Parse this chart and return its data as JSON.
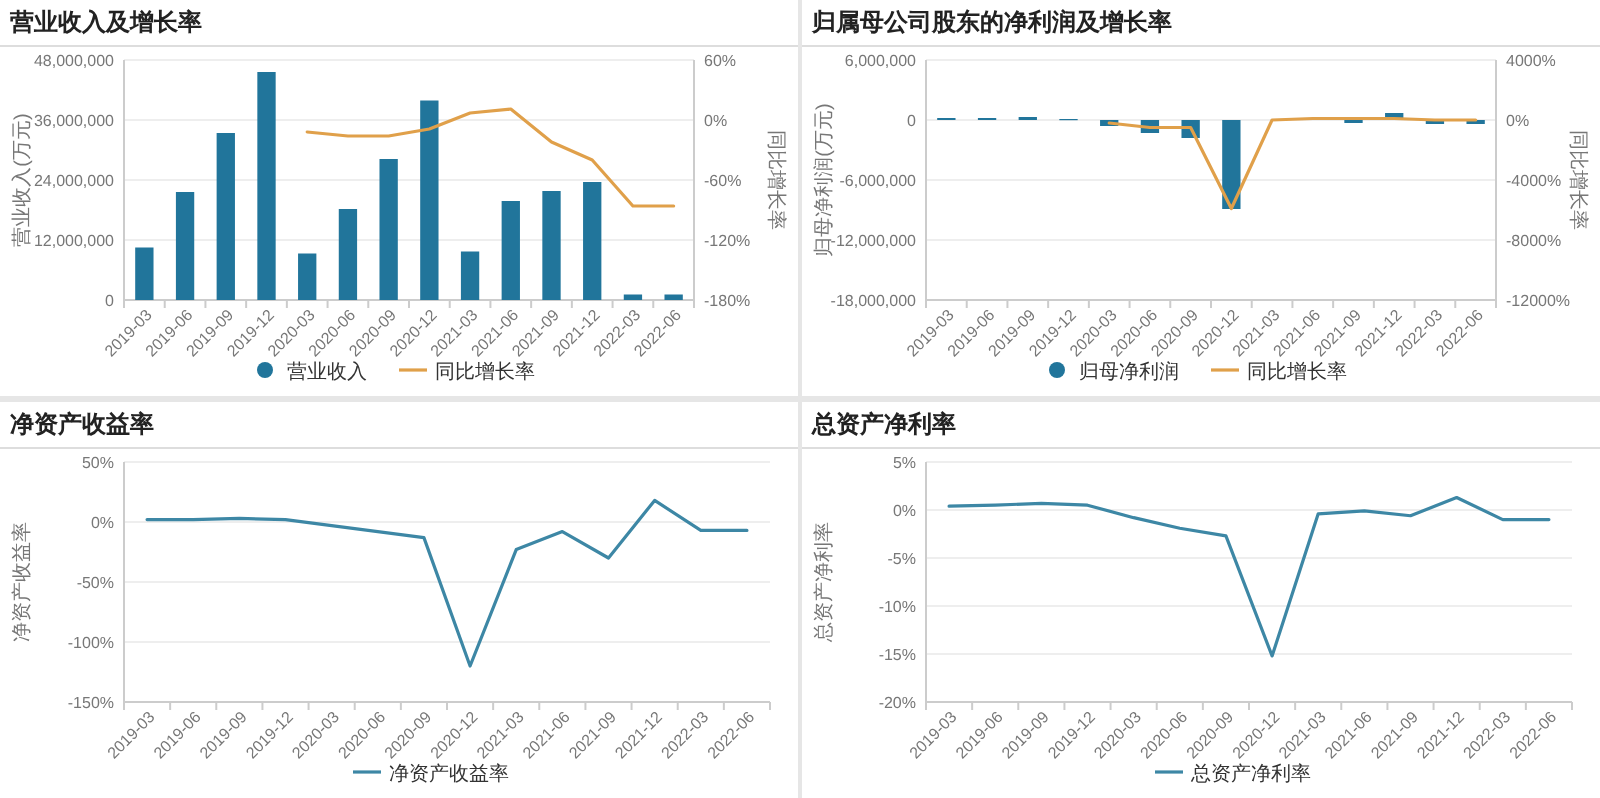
{
  "chart_data": [
    {
      "type": "bar",
      "title": "营业收入及增长率",
      "ylabel": "营业收入(万元)",
      "y2label": "同比增长率",
      "categories": [
        "2019-03",
        "2019-06",
        "2019-09",
        "2019-12",
        "2020-03",
        "2020-06",
        "2020-09",
        "2020-12",
        "2021-03",
        "2021-06",
        "2021-09",
        "2021-12",
        "2022-03",
        "2022-06"
      ],
      "series": [
        {
          "name": "营业收入",
          "color": "#21759b",
          "values": [
            10500000,
            21600000,
            33400000,
            45600000,
            9300000,
            18200000,
            28200000,
            39900000,
            9700000,
            19800000,
            21800000,
            23600000,
            1100000,
            1100000
          ]
        },
        {
          "name": "同比增长率",
          "type": "line",
          "axis": "y2",
          "color": "#e0a04a",
          "values": [
            null,
            null,
            null,
            null,
            -12,
            -16,
            -16,
            -9,
            7,
            11,
            -22,
            -40,
            -86,
            -86
          ]
        }
      ],
      "ylim": [
        0,
        48000000
      ],
      "yticks": [
        {
          "value": 0,
          "label": "0"
        },
        {
          "value": 12000000,
          "label": "12,000,000"
        },
        {
          "value": 24000000,
          "label": "24,000,000"
        },
        {
          "value": 36000000,
          "label": "36,000,000"
        },
        {
          "value": 48000000,
          "label": "48,000,000"
        }
      ],
      "y2lim": [
        -180,
        60
      ],
      "y2ticks": [
        {
          "value": -180,
          "label": "-180%"
        },
        {
          "value": -120,
          "label": "-120%"
        },
        {
          "value": -60,
          "label": "-60%"
        },
        {
          "value": 0,
          "label": "0%"
        },
        {
          "value": 60,
          "label": "60%"
        }
      ],
      "grid": "y",
      "legend": "bottom"
    },
    {
      "type": "bar",
      "title": "归属母公司股东的净利润及增长率",
      "ylabel": "归母净利润(万元)",
      "y2label": "同比增长率",
      "categories": [
        "2019-03",
        "2019-06",
        "2019-09",
        "2019-12",
        "2020-03",
        "2020-06",
        "2020-09",
        "2020-12",
        "2021-03",
        "2021-06",
        "2021-09",
        "2021-12",
        "2022-03",
        "2022-06"
      ],
      "series": [
        {
          "name": "归母净利润",
          "color": "#21759b",
          "values": [
            200000,
            200000,
            300000,
            100000,
            -600000,
            -1300000,
            -1800000,
            -8900000,
            null,
            null,
            -300000,
            700000,
            -400000,
            -400000
          ]
        },
        {
          "name": "同比增长率",
          "type": "line",
          "axis": "y2",
          "color": "#e0a04a",
          "values": [
            null,
            null,
            null,
            null,
            -200,
            -500,
            -500,
            -5900,
            0,
            100,
            100,
            100,
            0,
            0
          ]
        }
      ],
      "ylim": [
        -18000000,
        6000000
      ],
      "yticks": [
        {
          "value": -18000000,
          "label": "-18,000,000"
        },
        {
          "value": -12000000,
          "label": "-12,000,000"
        },
        {
          "value": -6000000,
          "label": "-6,000,000"
        },
        {
          "value": 0,
          "label": "0"
        },
        {
          "value": 6000000,
          "label": "6,000,000"
        }
      ],
      "y2lim": [
        -12000,
        4000
      ],
      "y2ticks": [
        {
          "value": -12000,
          "label": "-12000%"
        },
        {
          "value": -8000,
          "label": "-8000%"
        },
        {
          "value": -4000,
          "label": "-4000%"
        },
        {
          "value": 0,
          "label": "0%"
        },
        {
          "value": 4000,
          "label": "4000%"
        }
      ],
      "grid": "y",
      "legend": "bottom"
    },
    {
      "type": "line",
      "title": "净资产收益率",
      "ylabel": "净资产收益率",
      "categories": [
        "2019-03",
        "2019-06",
        "2019-09",
        "2019-12",
        "2020-03",
        "2020-06",
        "2020-09",
        "2020-12",
        "2021-03",
        "2021-06",
        "2021-09",
        "2021-12",
        "2022-03",
        "2022-06"
      ],
      "series": [
        {
          "name": "净资产收益率",
          "color": "#3d87a5",
          "values": [
            2,
            2,
            3,
            2,
            -3,
            -8,
            -13,
            -120,
            -23,
            -8,
            -30,
            18,
            -7,
            -7
          ]
        }
      ],
      "ylim": [
        -150,
        50
      ],
      "yticks": [
        {
          "value": -150,
          "label": "-150%"
        },
        {
          "value": -100,
          "label": "-100%"
        },
        {
          "value": -50,
          "label": "-50%"
        },
        {
          "value": 0,
          "label": "0%"
        },
        {
          "value": 50,
          "label": "50%"
        }
      ],
      "grid": "y",
      "legend": "bottom"
    },
    {
      "type": "line",
      "title": "总资产净利率",
      "ylabel": "总资产净利率",
      "categories": [
        "2019-03",
        "2019-06",
        "2019-09",
        "2019-12",
        "2020-03",
        "2020-06",
        "2020-09",
        "2020-12",
        "2021-03",
        "2021-06",
        "2021-09",
        "2021-12",
        "2022-03",
        "2022-06"
      ],
      "series": [
        {
          "name": "总资产净利率",
          "color": "#3d87a5",
          "values": [
            0.4,
            0.5,
            0.7,
            0.5,
            -0.8,
            -1.9,
            -2.7,
            -15.2,
            -0.4,
            -0.1,
            -0.6,
            1.3,
            -1.0,
            -1.0
          ]
        }
      ],
      "ylim": [
        -20,
        5
      ],
      "yticks": [
        {
          "value": -20,
          "label": "-20%"
        },
        {
          "value": -15,
          "label": "-15%"
        },
        {
          "value": -10,
          "label": "-10%"
        },
        {
          "value": -5,
          "label": "-5%"
        },
        {
          "value": 0,
          "label": "0%"
        },
        {
          "value": 5,
          "label": "5%"
        }
      ],
      "grid": "y",
      "legend": "bottom"
    }
  ]
}
